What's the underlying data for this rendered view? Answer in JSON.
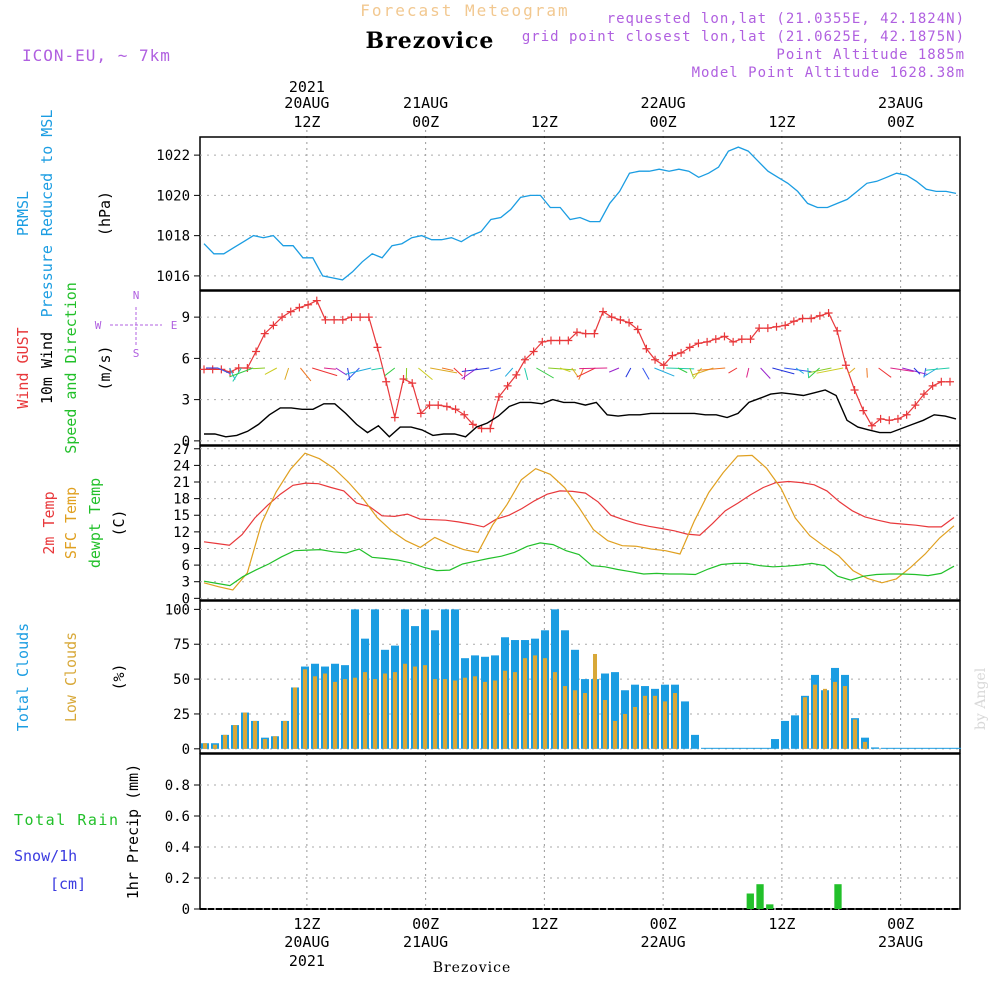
{
  "header": {
    "super_title": "Forecast Meteogram",
    "location": "Brezovice",
    "model": "ICON-EU, ~ 7km",
    "requested": "requested lon,lat (21.0355E, 42.1824N)",
    "grid_point": "grid point closest lon,lat (21.0625E, 42.1875N)",
    "point_altitude": "Point Altitude 1885m",
    "model_altitude": "Model Point Altitude 1628.38m",
    "watermark": "by Angel",
    "footer_location": "Brezovice"
  },
  "time_axis": {
    "hours_total": 64,
    "top_year": "2021",
    "bottom_year": "2021",
    "ticks": [
      {
        "hour": 9,
        "top_date": "20AUG",
        "top_hour": "12Z",
        "bottom_hour": "12Z",
        "bottom_date": "20AUG"
      },
      {
        "hour": 19,
        "top_date": "21AUG",
        "top_hour": "00Z",
        "bottom_hour": "00Z",
        "bottom_date": "21AUG"
      },
      {
        "hour": 29,
        "top_date": "",
        "top_hour": "12Z",
        "bottom_hour": "12Z",
        "bottom_date": ""
      },
      {
        "hour": 39,
        "top_date": "22AUG",
        "top_hour": "00Z",
        "bottom_hour": "00Z",
        "bottom_date": "22AUG"
      },
      {
        "hour": 49,
        "top_date": "",
        "top_hour": "12Z",
        "bottom_hour": "12Z",
        "bottom_date": ""
      },
      {
        "hour": 59,
        "top_date": "23AUG",
        "top_hour": "00Z",
        "bottom_hour": "00Z",
        "bottom_date": "23AUG"
      }
    ]
  },
  "colors": {
    "pressure": "#1b9de2",
    "gust": "#e8383b",
    "wind": "#000000",
    "wind_dir_label": "#22c02a",
    "temp": "#e8383b",
    "sfc_temp": "#e0a020",
    "dewpoint": "#22c02a",
    "total_clouds": "#1b9de2",
    "low_clouds": "#d8a838",
    "rain": "#22c02a",
    "snow": "#3a3ae0",
    "header_faint": "#f2c890",
    "header_purple": "#b060e0"
  },
  "chart_data": [
    {
      "type": "line",
      "panel": "pressure",
      "title": "PRMSL Pressure Reduced to MSL",
      "label_lines": [
        "PRMSL",
        "Pressure Reduced to MSL"
      ],
      "ylabel": "(hPa)",
      "ylim": [
        1015.3,
        1022.9
      ],
      "yticks": [
        1016,
        1018,
        1020,
        1022
      ],
      "series": [
        {
          "name": "PRMSL",
          "values": [
            1017.6,
            1017.1,
            1017.1,
            1017.4,
            1017.7,
            1018.0,
            1017.9,
            1018.0,
            1017.5,
            1017.5,
            1016.9,
            1016.9,
            1016.0,
            1015.9,
            1015.8,
            1016.2,
            1016.7,
            1017.1,
            1016.9,
            1017.5,
            1017.6,
            1017.9,
            1018.0,
            1017.8,
            1017.8,
            1017.9,
            1017.7,
            1018.0,
            1018.2,
            1018.8,
            1018.9,
            1019.3,
            1019.9,
            1020.0,
            1020.0,
            1019.4,
            1019.4,
            1018.8,
            1018.9,
            1018.7,
            1018.7,
            1019.6,
            1020.2,
            1021.1,
            1021.2,
            1021.2,
            1021.3,
            1021.2,
            1021.3,
            1021.2,
            1020.9,
            1021.1,
            1021.4,
            1022.2,
            1022.4,
            1022.2,
            1021.7,
            1021.2,
            1020.9,
            1020.6,
            1020.2,
            1019.6,
            1019.4,
            1019.4,
            1019.6,
            1019.8,
            1020.2,
            1020.6,
            1020.7,
            1020.9,
            1021.1,
            1021.0,
            1020.7,
            1020.3,
            1020.2,
            1020.2,
            1020.1
          ]
        }
      ]
    },
    {
      "type": "line",
      "panel": "wind",
      "title": "Wind GUST / 10m Wind Speed and Direction",
      "label_lines": [
        "Wind GUST",
        "10m Wind",
        "Speed and Direction"
      ],
      "ylabel": "(m/s)",
      "compass": {
        "n": "N",
        "s": "S",
        "e": "E",
        "w": "W"
      },
      "ylim": [
        -0.3,
        10.9
      ],
      "yticks": [
        0,
        3,
        6,
        9
      ],
      "series": [
        {
          "name": "Wind GUST",
          "values": [
            5.2,
            5.2,
            5.2,
            5.0,
            5.3,
            5.3,
            6.5,
            7.8,
            8.4,
            9.0,
            9.4,
            9.7,
            9.9,
            10.2,
            8.8,
            8.8,
            8.8,
            9.0,
            9.0,
            9.0,
            6.8,
            4.3,
            1.7,
            4.5,
            4.2,
            2.0,
            2.6,
            2.6,
            2.5,
            2.3,
            1.9,
            1.2,
            0.9,
            0.9,
            3.2,
            4.0,
            4.8,
            5.9,
            6.5,
            7.2,
            7.3,
            7.3,
            7.3,
            7.9,
            7.8,
            7.8,
            9.4,
            9.0,
            8.8,
            8.6,
            8.1,
            6.7,
            5.9,
            5.5,
            6.2,
            6.4,
            6.8,
            7.1,
            7.2,
            7.4,
            7.6,
            7.2,
            7.4,
            7.4,
            8.2,
            8.2,
            8.3,
            8.4,
            8.7,
            8.9,
            8.9,
            9.1,
            9.3,
            8.0,
            5.5,
            3.7,
            2.2,
            1.1,
            1.6,
            1.5,
            1.6,
            1.9,
            2.6,
            3.4,
            4.0,
            4.3,
            4.3
          ]
        },
        {
          "name": "10m Wind",
          "values": [
            0.5,
            0.5,
            0.3,
            0.4,
            0.7,
            1.2,
            1.9,
            2.4,
            2.4,
            2.3,
            2.3,
            2.7,
            2.7,
            2.0,
            1.2,
            0.6,
            1.1,
            0.3,
            1.0,
            1.0,
            0.8,
            0.4,
            0.5,
            0.5,
            0.3,
            1.0,
            1.3,
            1.8,
            2.5,
            2.8,
            2.8,
            2.7,
            3.0,
            2.8,
            2.8,
            2.6,
            2.8,
            1.9,
            1.8,
            1.9,
            1.9,
            2.0,
            2.0,
            2.0,
            2.0,
            2.0,
            1.9,
            1.9,
            1.7,
            2.0,
            2.8,
            3.1,
            3.4,
            3.5,
            3.4,
            3.3,
            3.5,
            3.7,
            3.3,
            1.5,
            1.0,
            0.8,
            0.6,
            0.6,
            0.9,
            1.2,
            1.5,
            1.9,
            1.8,
            1.6
          ]
        }
      ]
    },
    {
      "type": "line",
      "panel": "temperature",
      "title": "2m Temp / SFC Temp / dewpt Temp",
      "label_lines": [
        "2m Temp",
        "SFC Temp",
        "dewpt Temp"
      ],
      "ylabel": "(C)",
      "ylim": [
        -0.3,
        27.5
      ],
      "yticks": [
        0,
        3,
        6,
        9,
        12,
        15,
        18,
        21,
        24,
        27
      ],
      "series": [
        {
          "name": "2m Temp",
          "values": [
            10.2,
            9.9,
            9.6,
            11.5,
            14.5,
            16.8,
            18.8,
            20.4,
            20.8,
            20.7,
            20.0,
            19.4,
            17.2,
            16.6,
            14.9,
            14.8,
            15.2,
            14.3,
            14.2,
            14.1,
            13.8,
            13.4,
            12.9,
            14.3,
            15.0,
            16.2,
            17.6,
            18.8,
            19.4,
            19.3,
            19.0,
            17.4,
            15.0,
            14.2,
            13.5,
            13.0,
            12.6,
            12.2,
            11.6,
            11.4,
            13.5,
            15.8,
            17.2,
            18.7,
            20.0,
            20.9,
            21.1,
            20.9,
            20.5,
            19.4,
            17.4,
            15.8,
            14.7,
            14.1,
            13.6,
            13.4,
            13.2,
            12.9,
            12.9,
            14.6
          ]
        },
        {
          "name": "SFC Temp",
          "values": [
            2.8,
            2.1,
            1.5,
            4.6,
            13.6,
            19.2,
            23.3,
            26.2,
            25.2,
            23.5,
            21.0,
            18.1,
            14.6,
            12.2,
            10.4,
            9.2,
            11.0,
            9.8,
            8.8,
            8.3,
            13.2,
            16.9,
            21.4,
            23.4,
            22.4,
            20.0,
            16.4,
            12.4,
            10.4,
            9.5,
            9.4,
            8.9,
            8.6,
            8.0,
            14.0,
            19.1,
            22.7,
            25.7,
            25.8,
            23.5,
            19.9,
            14.5,
            11.3,
            9.4,
            7.7,
            5.0,
            3.6,
            2.8,
            3.5,
            5.6,
            8.0,
            10.9,
            13.1
          ]
        },
        {
          "name": "dewpt Temp",
          "values": [
            3.1,
            2.7,
            2.3,
            3.9,
            5.1,
            6.2,
            7.5,
            8.6,
            8.7,
            8.8,
            8.4,
            8.2,
            8.9,
            7.4,
            7.2,
            6.9,
            6.4,
            5.6,
            5.0,
            5.1,
            6.2,
            6.7,
            7.2,
            7.6,
            8.3,
            9.4,
            10.0,
            9.7,
            8.6,
            7.9,
            5.9,
            5.7,
            5.2,
            4.8,
            4.4,
            4.5,
            4.4,
            4.4,
            4.3,
            5.3,
            6.1,
            6.3,
            6.3,
            5.9,
            5.7,
            5.8,
            6.0,
            6.3,
            5.9,
            4.0,
            3.3,
            4.0,
            4.3,
            4.4,
            4.4,
            4.3,
            4.1,
            4.5,
            5.8
          ]
        }
      ]
    },
    {
      "type": "bar",
      "panel": "clouds",
      "title": "Total Clouds / Low Clouds",
      "label_lines": [
        "Total Clouds",
        "Low Clouds"
      ],
      "ylabel": "(%)",
      "ylim": [
        -3,
        106
      ],
      "yticks": [
        0,
        25,
        50,
        75,
        100
      ],
      "series": [
        {
          "name": "Total Clouds",
          "values": [
            4,
            4,
            10,
            17,
            26,
            20,
            8,
            9,
            20,
            44,
            59,
            61,
            59,
            61,
            60,
            100,
            79,
            100,
            71,
            74,
            100,
            88,
            100,
            85,
            100,
            100,
            65,
            67,
            66,
            67,
            80,
            78,
            78,
            79,
            85,
            100,
            85,
            71,
            50,
            50,
            54,
            55,
            42,
            46,
            45,
            43,
            46,
            46,
            34,
            10,
            0,
            0,
            0,
            0,
            0,
            0,
            0,
            7,
            20,
            24,
            38,
            53,
            42,
            58,
            53,
            22,
            8,
            1,
            0,
            0,
            0,
            0,
            0,
            0,
            0,
            0
          ]
        },
        {
          "name": "Low Clouds",
          "values": [
            4,
            3,
            10,
            17,
            26,
            20,
            7,
            9,
            20,
            44,
            57,
            52,
            54,
            48,
            50,
            51,
            55,
            50,
            54,
            55,
            61,
            59,
            60,
            50,
            50,
            49,
            51,
            52,
            48,
            49,
            56,
            55,
            65,
            67,
            65,
            55,
            45,
            42,
            40,
            68,
            35,
            20,
            25,
            30,
            38,
            38,
            34,
            40,
            0,
            0,
            0,
            0,
            0,
            0,
            0,
            0,
            0,
            0,
            0,
            0,
            37,
            46,
            43,
            48,
            45,
            21,
            5,
            0,
            0,
            0,
            0,
            0,
            0,
            0,
            0,
            0
          ]
        }
      ]
    },
    {
      "type": "bar",
      "panel": "precip",
      "title": "1hr Precip (mm)",
      "label_lines": [
        "Total Rain",
        "Snow/1h",
        "[cm]"
      ],
      "ylabel": "1hr Precip (mm)",
      "ylim": [
        0,
        1.0
      ],
      "yticks": [
        0,
        0.2,
        0.4,
        0.6,
        0.8
      ],
      "ytick_labels": [
        "0",
        "0.2",
        "0.4",
        "0.6",
        "0.8"
      ],
      "series": [
        {
          "name": "Total Rain",
          "values": [
            0,
            0,
            0,
            0,
            0,
            0,
            0,
            0,
            0,
            0,
            0,
            0,
            0,
            0,
            0,
            0,
            0,
            0,
            0,
            0,
            0,
            0,
            0,
            0,
            0,
            0,
            0,
            0,
            0,
            0,
            0,
            0,
            0,
            0,
            0,
            0,
            0,
            0,
            0,
            0,
            0,
            0,
            0,
            0,
            0,
            0,
            0,
            0,
            0,
            0,
            0,
            0,
            0,
            0,
            0,
            0,
            0.1,
            0.16,
            0.03,
            0,
            0,
            0,
            0,
            0,
            0,
            0.16,
            0,
            0,
            0,
            0,
            0,
            0,
            0,
            0,
            0,
            0,
            0,
            0
          ]
        },
        {
          "name": "Snow/1h",
          "values": [
            0,
            0,
            0,
            0,
            0,
            0,
            0,
            0,
            0,
            0,
            0,
            0,
            0,
            0,
            0,
            0,
            0,
            0,
            0,
            0,
            0,
            0,
            0,
            0,
            0,
            0,
            0,
            0,
            0,
            0,
            0,
            0,
            0,
            0,
            0,
            0,
            0,
            0,
            0,
            0,
            0,
            0,
            0,
            0,
            0,
            0,
            0,
            0,
            0,
            0,
            0,
            0,
            0,
            0,
            0,
            0,
            0,
            0,
            0,
            0,
            0,
            0,
            0,
            0,
            0,
            0,
            0,
            0,
            0,
            0,
            0,
            0,
            0,
            0,
            0,
            0,
            0,
            0
          ]
        }
      ]
    }
  ]
}
